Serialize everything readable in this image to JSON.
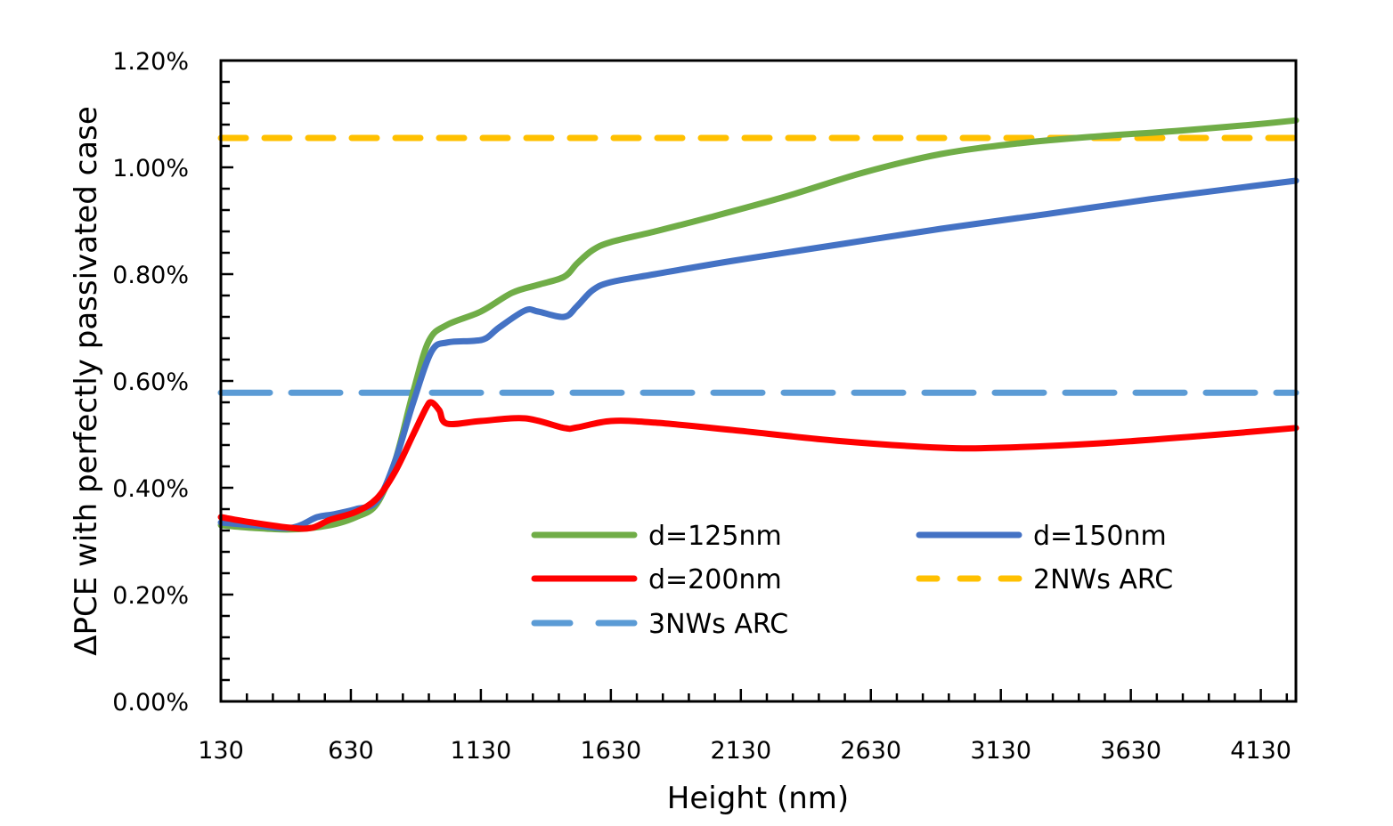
{
  "chart_data": {
    "type": "line",
    "title": "",
    "xlabel": "Height (nm)",
    "ylabel": "ΔPCE with perfectly passivated case",
    "xlim": [
      130,
      4265
    ],
    "ylim": [
      0,
      1.2
    ],
    "x_ticks": [
      130,
      630,
      1130,
      1630,
      2130,
      2630,
      3130,
      3630,
      4130
    ],
    "x_tick_labels": [
      "130",
      "630",
      "1130",
      "1630",
      "2130",
      "2630",
      "3130",
      "3630",
      "4130"
    ],
    "y_ticks": [
      0,
      0.2,
      0.4,
      0.6,
      0.8,
      1.0,
      1.2
    ],
    "y_tick_labels": [
      "0.00%",
      "0.20%",
      "0.40%",
      "0.60%",
      "0.80%",
      "1.00%",
      "1.20%"
    ],
    "y_unit": "%",
    "grid": false,
    "legend_position": "lower-center",
    "series": [
      {
        "name": "d=125nm",
        "color": "#70ad47",
        "style": "solid",
        "x": [
          130,
          250,
          400,
          550,
          650,
          730,
          800,
          870,
          930,
          1000,
          1130,
          1250,
          1350,
          1450,
          1500,
          1560,
          1630,
          1800,
          2000,
          2300,
          2600,
          2900,
          3200,
          3500,
          3800,
          4100,
          4265
        ],
        "y": [
          0.33,
          0.325,
          0.322,
          0.33,
          0.345,
          0.37,
          0.45,
          0.58,
          0.675,
          0.705,
          0.73,
          0.765,
          0.78,
          0.795,
          0.82,
          0.845,
          0.86,
          0.88,
          0.905,
          0.945,
          0.99,
          1.025,
          1.045,
          1.058,
          1.068,
          1.08,
          1.088
        ]
      },
      {
        "name": "d=150nm",
        "color": "#4472c4",
        "style": "solid",
        "x": [
          130,
          250,
          400,
          500,
          560,
          650,
          730,
          800,
          870,
          940,
          1000,
          1100,
          1150,
          1200,
          1300,
          1350,
          1450,
          1500,
          1560,
          1630,
          1800,
          2100,
          2500,
          2900,
          3300,
          3700,
          4100,
          4265
        ],
        "y": [
          0.335,
          0.33,
          0.325,
          0.345,
          0.35,
          0.36,
          0.375,
          0.45,
          0.56,
          0.655,
          0.672,
          0.675,
          0.68,
          0.7,
          0.732,
          0.73,
          0.72,
          0.74,
          0.77,
          0.785,
          0.8,
          0.825,
          0.855,
          0.885,
          0.912,
          0.94,
          0.965,
          0.975
        ]
      },
      {
        "name": "d=200nm",
        "color": "#ff0000",
        "style": "solid",
        "x": [
          130,
          250,
          400,
          480,
          550,
          650,
          730,
          800,
          870,
          920,
          940,
          970,
          1000,
          1130,
          1300,
          1450,
          1500,
          1630,
          1800,
          2100,
          2500,
          2900,
          3130,
          3500,
          3900,
          4265
        ],
        "y": [
          0.345,
          0.335,
          0.325,
          0.325,
          0.34,
          0.355,
          0.38,
          0.43,
          0.5,
          0.55,
          0.56,
          0.545,
          0.52,
          0.525,
          0.53,
          0.512,
          0.513,
          0.525,
          0.522,
          0.508,
          0.488,
          0.475,
          0.475,
          0.483,
          0.497,
          0.512
        ]
      },
      {
        "name": "2NWs ARC",
        "color": "#ffc000",
        "style": "dashed",
        "x": [
          130,
          4265
        ],
        "y": [
          1.055,
          1.055
        ]
      },
      {
        "name": "3NWs ARC",
        "color": "#5b9bd5",
        "style": "long-dashed",
        "x": [
          130,
          4265
        ],
        "y": [
          0.578,
          0.578
        ]
      }
    ],
    "legend": [
      "d=125nm",
      "d=150nm",
      "d=200nm",
      "2NWs ARC",
      "3NWs ARC"
    ]
  }
}
